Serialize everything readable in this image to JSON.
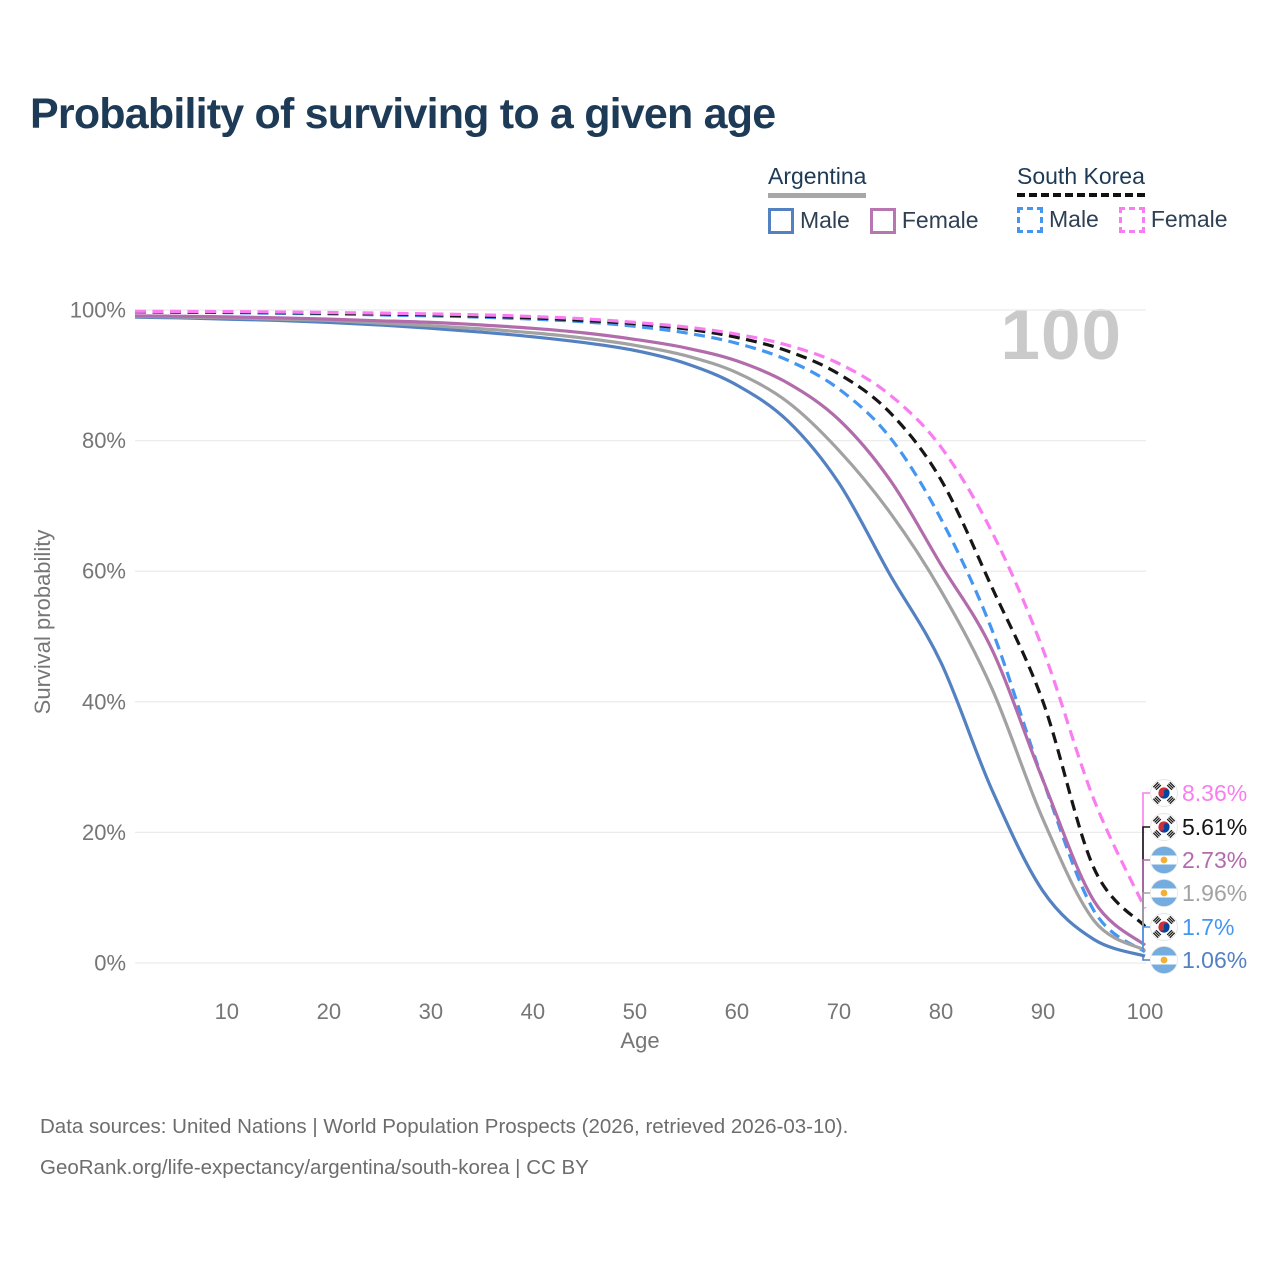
{
  "page": {
    "title": "Probability of surviving to a given age"
  },
  "legend": {
    "groups": [
      {
        "title": "Argentina",
        "underline_style": "solid",
        "underline_color": "#a7a7a7",
        "items": [
          {
            "label": "Male",
            "color": "#5381c1",
            "dashed": false
          },
          {
            "label": "Female",
            "color": "#b876b0",
            "dashed": false
          }
        ]
      },
      {
        "title": "South Korea",
        "underline_style": "dashed",
        "underline_color": "#111111",
        "items": [
          {
            "label": "Male",
            "color": "#4496f0",
            "dashed": true
          },
          {
            "label": "Female",
            "color": "#f97df0",
            "dashed": true
          }
        ]
      }
    ]
  },
  "watermark": "100",
  "footer": {
    "line1": "Data sources: United Nations | World Population Prospects (2026, retrieved 2026-03-10).",
    "line2": "GeoRank.org/life-expectancy/argentina/south-korea | CC BY"
  },
  "chart_data": {
    "type": "line",
    "title": "Probability of surviving to a given age",
    "xlabel": "Age",
    "ylabel": "Survival probability",
    "xlim": [
      1,
      100
    ],
    "ylim": [
      0,
      100
    ],
    "grid": "horizontal-only",
    "grid_color": "#ececec",
    "axis_text_color": "#767676",
    "x_ticks": [
      10,
      20,
      30,
      40,
      50,
      60,
      70,
      80,
      90,
      100
    ],
    "y_ticks": [
      {
        "value": 0,
        "label": "0%"
      },
      {
        "value": 20,
        "label": "20%"
      },
      {
        "value": 40,
        "label": "40%"
      },
      {
        "value": 60,
        "label": "60%"
      },
      {
        "value": 80,
        "label": "80%"
      },
      {
        "value": 100,
        "label": "100%"
      }
    ],
    "ages": [
      1,
      5,
      10,
      15,
      20,
      25,
      30,
      35,
      40,
      45,
      50,
      55,
      60,
      65,
      70,
      75,
      80,
      85,
      90,
      95,
      100
    ],
    "series": [
      {
        "name": "South Korea Female",
        "country": "south-korea",
        "sex": "Female",
        "style": "dashed",
        "color": "#f97df0",
        "end_label": "8.36%",
        "values": [
          99.8,
          99.78,
          99.75,
          99.7,
          99.62,
          99.52,
          99.4,
          99.25,
          99.0,
          98.65,
          98.1,
          97.4,
          96.3,
          94.6,
          91.8,
          87.0,
          79.0,
          66.0,
          48.0,
          25.0,
          8.36
        ]
      },
      {
        "name": "South Korea Total",
        "country": "south-korea",
        "sex": "Both",
        "style": "dashed",
        "color": "#161616",
        "end_label": "5.61%",
        "values": [
          99.75,
          99.7,
          99.65,
          99.6,
          99.5,
          99.4,
          99.25,
          99.05,
          98.8,
          98.4,
          97.9,
          97.1,
          95.8,
          93.7,
          90.2,
          84.3,
          74.0,
          57.5,
          40.0,
          14.5,
          5.61
        ]
      },
      {
        "name": "Argentina Female",
        "country": "argentina",
        "sex": "Female",
        "style": "solid",
        "color": "#b26cab",
        "end_label": "2.73%",
        "values": [
          99.1,
          99.05,
          98.95,
          98.8,
          98.6,
          98.35,
          98.1,
          97.7,
          97.2,
          96.5,
          95.5,
          94.2,
          92.2,
          88.8,
          83.2,
          74.0,
          61.0,
          48.0,
          28.0,
          9.5,
          2.73
        ]
      },
      {
        "name": "Argentina Total",
        "country": "argentina",
        "sex": "Both",
        "style": "solid",
        "color": "#a2a2a2",
        "end_label": "1.96%",
        "values": [
          99.0,
          98.95,
          98.8,
          98.6,
          98.4,
          98.0,
          97.6,
          97.1,
          96.5,
          95.7,
          94.6,
          93.0,
          90.4,
          85.9,
          78.5,
          69.0,
          57.0,
          42.0,
          22.0,
          6.5,
          1.96
        ]
      },
      {
        "name": "South Korea Male",
        "country": "south-korea",
        "sex": "Male",
        "style": "dashed",
        "color": "#4496f0",
        "end_label": "1.7%",
        "values": [
          99.7,
          99.65,
          99.6,
          99.5,
          99.4,
          99.25,
          99.1,
          98.9,
          98.6,
          98.2,
          97.5,
          96.5,
          94.9,
          92.3,
          87.9,
          80.5,
          68.0,
          51.0,
          28.0,
          8.0,
          1.7
        ]
      },
      {
        "name": "Argentina Male",
        "country": "argentina",
        "sex": "Male",
        "style": "solid",
        "color": "#5381c1",
        "end_label": "1.06%",
        "values": [
          98.9,
          98.8,
          98.6,
          98.4,
          98.1,
          97.7,
          97.2,
          96.6,
          95.9,
          95.0,
          93.8,
          91.8,
          88.5,
          83.0,
          73.5,
          59.5,
          46.0,
          26.5,
          11.0,
          3.6,
          1.06
        ]
      }
    ],
    "flag_colors": {
      "argentina_blue": "#74ACDF",
      "argentina_sun": "#F2B135",
      "korea_red": "#CD2E3A",
      "korea_blue": "#0047A0"
    }
  }
}
